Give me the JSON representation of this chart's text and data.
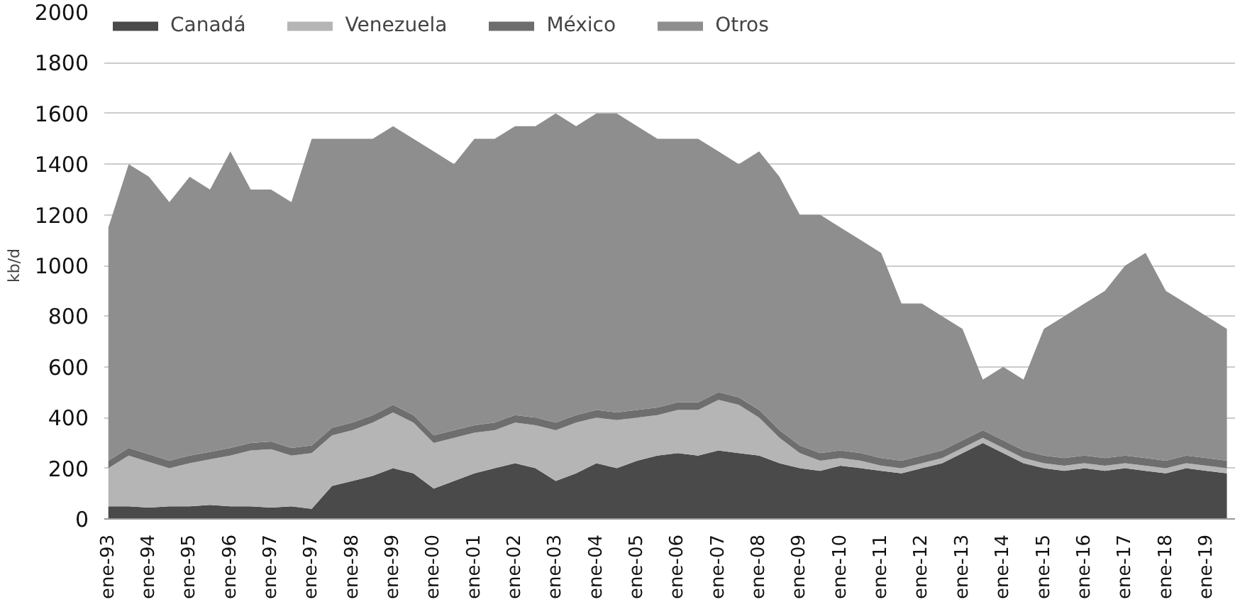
{
  "chart_data": {
    "type": "area",
    "stacked": true,
    "ylabel": "kb/d",
    "ylim": [
      0,
      2000
    ],
    "yticks": [
      0,
      200,
      400,
      600,
      800,
      1000,
      1200,
      1400,
      1600,
      1800,
      2000
    ],
    "categories": [
      "ene-93",
      null,
      "ene-94",
      null,
      "ene-95",
      null,
      "ene-96",
      null,
      "ene-97",
      null,
      "ene-97",
      null,
      "ene-98",
      null,
      "ene-99",
      null,
      "ene-00",
      null,
      "ene-01",
      null,
      "ene-02",
      null,
      "ene-03",
      null,
      "ene-04",
      null,
      "ene-05",
      null,
      "ene-06",
      null,
      "ene-07",
      null,
      "ene-08",
      null,
      "ene-09",
      null,
      "ene-10",
      null,
      "ene-11",
      null,
      "ene-12",
      null,
      "ene-13",
      null,
      "ene-14",
      null,
      "ene-15",
      null,
      "ene-16",
      null,
      "ene-17",
      null,
      "ene-18",
      null,
      "ene-19",
      null
    ],
    "series": [
      {
        "name": "Canadá",
        "color": "#4a4a4a",
        "values": [
          50,
          50,
          45,
          50,
          50,
          55,
          50,
          50,
          45,
          50,
          40,
          130,
          150,
          170,
          200,
          180,
          120,
          150,
          180,
          200,
          220,
          200,
          150,
          180,
          220,
          200,
          230,
          250,
          260,
          250,
          270,
          260,
          250,
          220,
          200,
          190,
          210,
          200,
          190,
          180,
          200,
          220,
          260,
          300,
          260,
          220,
          200,
          190,
          200,
          190,
          200,
          190,
          180,
          200,
          190,
          180
        ]
      },
      {
        "name": "Venezuela",
        "color": "#b5b5b5",
        "values": [
          150,
          200,
          180,
          150,
          170,
          180,
          200,
          220,
          230,
          200,
          220,
          200,
          200,
          210,
          220,
          200,
          180,
          170,
          160,
          150,
          160,
          170,
          200,
          200,
          180,
          190,
          170,
          160,
          170,
          180,
          200,
          190,
          150,
          100,
          60,
          40,
          30,
          30,
          20,
          20,
          20,
          20,
          20,
          20,
          20,
          20,
          20,
          20,
          20,
          20,
          20,
          20,
          20,
          20,
          20,
          20
        ]
      },
      {
        "name": "México",
        "color": "#6e6e6e",
        "values": [
          30,
          30,
          30,
          30,
          30,
          30,
          30,
          30,
          30,
          30,
          30,
          30,
          30,
          30,
          30,
          30,
          30,
          30,
          30,
          30,
          30,
          30,
          30,
          30,
          30,
          30,
          30,
          30,
          30,
          30,
          30,
          30,
          30,
          30,
          30,
          30,
          30,
          30,
          30,
          30,
          30,
          30,
          30,
          30,
          30,
          30,
          30,
          30,
          30,
          30,
          30,
          30,
          30,
          30,
          30,
          30
        ]
      },
      {
        "name": "Otros",
        "color": "#8e8e8e",
        "values": [
          920,
          1120,
          1095,
          1020,
          1100,
          1035,
          1170,
          1000,
          995,
          970,
          1210,
          1140,
          1120,
          1090,
          1100,
          1090,
          1120,
          1050,
          1130,
          1120,
          1140,
          1150,
          1220,
          1140,
          1170,
          1180,
          1120,
          1060,
          1040,
          1040,
          950,
          920,
          1020,
          1000,
          910,
          940,
          880,
          840,
          810,
          620,
          600,
          530,
          440,
          200,
          290,
          280,
          500,
          560,
          600,
          660,
          750,
          810,
          670,
          600,
          560,
          520
        ]
      }
    ],
    "grid": "y",
    "legend": "top left"
  }
}
